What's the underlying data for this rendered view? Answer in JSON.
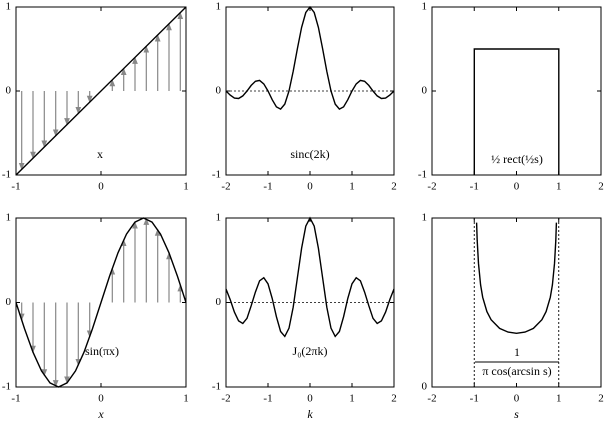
{
  "chart_data": [
    {
      "type": "line",
      "xlim": [
        -1,
        1
      ],
      "xticks": [
        -1,
        0,
        1
      ],
      "ylim": [
        -1,
        1
      ],
      "yticks": [
        -1,
        0,
        1
      ],
      "annotation": "x",
      "series": [
        {
          "color": "#000000",
          "x": [
            -1,
            1
          ],
          "values": [
            -1,
            1
          ]
        }
      ],
      "stems": {
        "color": "#888888",
        "x": [
          -0.933,
          -0.8,
          -0.667,
          -0.533,
          -0.4,
          -0.267,
          -0.133,
          0.133,
          0.267,
          0.4,
          0.533,
          0.667,
          0.8,
          0.933
        ],
        "values": [
          -0.933,
          -0.8,
          -0.667,
          -0.533,
          -0.4,
          -0.267,
          -0.133,
          0.133,
          0.267,
          0.4,
          0.533,
          0.667,
          0.8,
          0.933
        ]
      }
    },
    {
      "type": "line",
      "xlim": [
        -2,
        2
      ],
      "xticks": [
        -2,
        -1,
        0,
        1,
        2
      ],
      "ylim": [
        -1,
        1
      ],
      "yticks": [
        -1,
        0,
        1
      ],
      "annotation": "sinc(2k)",
      "zero_line": true,
      "series": [
        {
          "color": "#000000",
          "x": [
            -2,
            -1.9,
            -1.8,
            -1.7,
            -1.6,
            -1.5,
            -1.4,
            -1.3,
            -1.2,
            -1.1,
            -1,
            -0.9,
            -0.8,
            -0.7,
            -0.6,
            -0.5,
            -0.4,
            -0.3,
            -0.2,
            -0.1,
            0,
            0.1,
            0.2,
            0.3,
            0.4,
            0.5,
            0.6,
            0.7,
            0.8,
            0.9,
            1,
            1.1,
            1.2,
            1.3,
            1.4,
            1.5,
            1.6,
            1.7,
            1.8,
            1.9,
            2
          ],
          "values": [
            0,
            -0.049,
            -0.084,
            -0.089,
            -0.058,
            0,
            0.067,
            0.116,
            0.126,
            0.085,
            0,
            -0.104,
            -0.189,
            -0.216,
            -0.156,
            0,
            0.234,
            0.505,
            0.757,
            0.935,
            1,
            0.935,
            0.757,
            0.505,
            0.234,
            0,
            -0.156,
            -0.216,
            -0.189,
            -0.104,
            0,
            0.085,
            0.126,
            0.116,
            0.067,
            0,
            -0.058,
            -0.089,
            -0.084,
            -0.049,
            0
          ]
        }
      ]
    },
    {
      "type": "line",
      "xlim": [
        -2,
        2
      ],
      "xticks": [
        -2,
        -1,
        0,
        1,
        2
      ],
      "ylim": [
        -1,
        1
      ],
      "yticks": [
        -1,
        0,
        1
      ],
      "annotation": "½ rect(½s)",
      "series": [
        {
          "color": "#000000",
          "x": [
            -1,
            -1,
            1,
            1
          ],
          "values": [
            -1,
            0.5,
            0.5,
            -1
          ]
        }
      ]
    },
    {
      "type": "line",
      "xlim": [
        -1,
        1
      ],
      "xticks": [
        -1,
        0,
        1
      ],
      "ylim": [
        -1,
        1
      ],
      "yticks": [
        -1,
        0,
        1
      ],
      "annotation": "sin(πx)",
      "xlabel": "x",
      "series": [
        {
          "color": "#000000",
          "x": [
            -1,
            -0.9,
            -0.8,
            -0.7,
            -0.6,
            -0.5,
            -0.4,
            -0.3,
            -0.2,
            -0.1,
            0,
            0.1,
            0.2,
            0.3,
            0.4,
            0.5,
            0.6,
            0.7,
            0.8,
            0.9,
            1
          ],
          "values": [
            0,
            -0.309,
            -0.588,
            -0.809,
            -0.951,
            -1,
            -0.951,
            -0.809,
            -0.588,
            -0.309,
            0,
            0.309,
            0.588,
            0.809,
            0.951,
            1,
            0.951,
            0.809,
            0.588,
            0.309,
            0
          ]
        }
      ],
      "stems": {
        "color": "#888888",
        "x": [
          -0.933,
          -0.8,
          -0.667,
          -0.533,
          -0.4,
          -0.267,
          -0.133,
          0.133,
          0.267,
          0.4,
          0.533,
          0.667,
          0.8,
          0.933
        ],
        "values": [
          -0.208,
          -0.588,
          -0.866,
          -0.995,
          -0.951,
          -0.743,
          -0.407,
          0.407,
          0.743,
          0.951,
          0.995,
          0.866,
          0.588,
          0.208
        ]
      }
    },
    {
      "type": "line",
      "xlim": [
        -2,
        2
      ],
      "xticks": [
        -2,
        -1,
        0,
        1,
        2
      ],
      "ylim": [
        -1,
        1
      ],
      "yticks": [
        -1,
        0,
        1
      ],
      "annotation": "J₀(2πk)",
      "xlabel": "k",
      "zero_line": true,
      "series": [
        {
          "color": "#000000",
          "x": [
            -2,
            -1.9,
            -1.8,
            -1.7,
            -1.6,
            -1.5,
            -1.4,
            -1.3,
            -1.2,
            -1.1,
            -1,
            -0.9,
            -0.8,
            -0.7,
            -0.6,
            -0.5,
            -0.4,
            -0.3,
            -0.2,
            -0.1,
            0,
            0.1,
            0.2,
            0.3,
            0.4,
            0.5,
            0.6,
            0.7,
            0.8,
            0.9,
            1,
            1.1,
            1.2,
            1.3,
            1.4,
            1.5,
            1.6,
            1.7,
            1.8,
            1.9,
            2
          ],
          "values": [
            0.16,
            0.034,
            -0.114,
            -0.218,
            -0.248,
            -0.187,
            -0.038,
            0.123,
            0.257,
            0.293,
            0.221,
            0.049,
            -0.168,
            -0.343,
            -0.401,
            -0.304,
            -0.055,
            0.293,
            0.642,
            0.904,
            1,
            0.904,
            0.642,
            0.293,
            -0.055,
            -0.304,
            -0.401,
            -0.343,
            -0.168,
            0.049,
            0.221,
            0.293,
            0.257,
            0.123,
            -0.038,
            -0.187,
            -0.248,
            -0.218,
            -0.114,
            0.034,
            0.16
          ]
        }
      ]
    },
    {
      "type": "line",
      "xlim": [
        -2,
        2
      ],
      "xticks": [
        -2,
        -1,
        0,
        1,
        2
      ],
      "ylim": [
        0,
        1
      ],
      "yticks": [
        0,
        1
      ],
      "xlabel": "s",
      "annotation": {
        "numerator": "1",
        "denominator": "π cos(arcsin s)"
      },
      "asymptotes": [
        -1,
        1
      ],
      "series": [
        {
          "color": "#000000",
          "x": [
            -0.945,
            -0.93,
            -0.9,
            -0.85,
            -0.8,
            -0.7,
            -0.6,
            -0.4,
            -0.2,
            0,
            0.2,
            0.4,
            0.6,
            0.7,
            0.8,
            0.85,
            0.9,
            0.93,
            0.945
          ],
          "values": [
            0.973,
            0.866,
            0.73,
            0.604,
            0.531,
            0.446,
            0.398,
            0.347,
            0.325,
            0.318,
            0.325,
            0.347,
            0.398,
            0.446,
            0.531,
            0.604,
            0.73,
            0.866,
            0.973
          ]
        }
      ]
    }
  ]
}
